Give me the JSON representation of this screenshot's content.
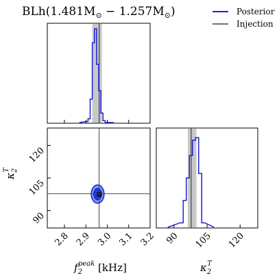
{
  "chart_data": {
    "type": "corner",
    "title": "BLh(1.481M_⊙ − 1.257M_⊙)",
    "title_parts": {
      "main": "BLh(1.481M",
      "sub1": "⊙",
      "mid": " − 1.257M",
      "sub2": "⊙",
      "close": ")"
    },
    "legend": {
      "placement": "top-right",
      "entries": [
        {
          "label": "Posterior",
          "color": "#1f1fd6"
        },
        {
          "label": "Injection",
          "color": "#404040"
        }
      ]
    },
    "parameters": [
      {
        "name": "f2_peak",
        "label_main": "f",
        "label_sub": "2",
        "label_sup": "peak",
        "label_unit": " [kHz]",
        "ticks": [
          "2.8",
          "2.9",
          "3.0",
          "3.1",
          "3.2"
        ],
        "tick_values": [
          2.8,
          2.9,
          3.0,
          3.1,
          3.2
        ],
        "range": [
          2.72,
          3.2
        ],
        "injection": 2.962,
        "interval": [
          2.93,
          2.975
        ]
      },
      {
        "name": "kappa2_T",
        "label_main": "κ",
        "label_sub": "2",
        "label_sup": "T",
        "ticks": [
          "90",
          "105",
          "120"
        ],
        "tick_values": [
          90,
          105,
          120
        ],
        "range": [
          82,
          128
        ],
        "injection": 97.8,
        "interval": [
          96.3,
          100.2
        ]
      }
    ],
    "marginal_f2": {
      "bins": [
        2.9,
        2.91,
        2.92,
        2.93,
        2.94,
        2.95,
        2.96,
        2.97,
        2.98,
        2.99
      ],
      "values": [
        0.01,
        0.04,
        0.25,
        0.85,
        1.0,
        0.62,
        0.34,
        0.1,
        0.02,
        0.0
      ]
    },
    "marginal_kappa": {
      "bins": [
        92.8,
        94.2,
        95.6,
        97.0,
        98.4,
        99.8,
        101.2,
        102.6
      ],
      "values": [
        0.05,
        0.3,
        0.55,
        0.8,
        0.97,
        1.0,
        0.6,
        0.05
      ]
    },
    "joint": {
      "center_f2": 2.955,
      "center_kappa": 97.6,
      "contours": [
        {
          "level": "outer",
          "rx_f2": 0.03,
          "ry_kappa": 4.2
        },
        {
          "level": "inner",
          "rx_f2": 0.018,
          "ry_kappa": 2.6
        }
      ]
    },
    "colors": {
      "posterior": "#1f1fd6",
      "posterior_fill_outer": "#7f9be8",
      "posterior_fill_inner": "#1f3fe8",
      "interval_fill": "#c8c8c8",
      "injection": "#404040"
    }
  }
}
